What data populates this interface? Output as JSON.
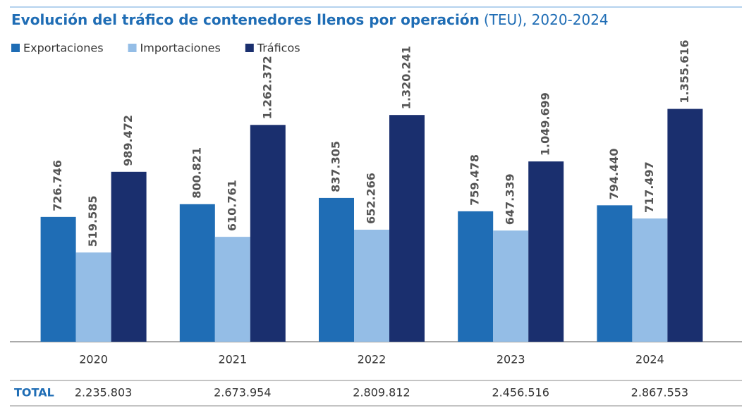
{
  "chart_data": {
    "type": "bar",
    "title": "Evolución del tráfico de contenedores llenos por operación",
    "subtitle": "(TEU), 2020-2024",
    "categories": [
      "2020",
      "2021",
      "2022",
      "2023",
      "2024"
    ],
    "series": [
      {
        "name": "Exportaciones",
        "color": "#1f6db5",
        "values": [
          726746,
          800821,
          837305,
          759478,
          794440
        ],
        "value_labels": [
          "726.746",
          "800.821",
          "837.305",
          "759.478",
          "794.440"
        ]
      },
      {
        "name": "Importaciones",
        "color": "#94bde6",
        "values": [
          519585,
          610761,
          652266,
          647339,
          717497
        ],
        "value_labels": [
          "519.585",
          "610.761",
          "652.266",
          "647.339",
          "717.497"
        ]
      },
      {
        "name": "Tráficos",
        "color": "#1a2f6e",
        "values": [
          989472,
          1262372,
          1320241,
          1049699,
          1355616
        ],
        "value_labels": [
          "989.472",
          "1.262.372",
          "1.320.241",
          "1.049.699",
          "1.355.616"
        ]
      }
    ],
    "ylim": [
      0,
      1600000
    ],
    "totals": {
      "label": "TOTAL",
      "values": [
        2235803,
        2673954,
        2809812,
        2456516,
        2867553
      ],
      "value_labels": [
        "2.235.803",
        "2.673.954",
        "2.809.812",
        "2.456.516",
        "2.867.553"
      ]
    }
  }
}
